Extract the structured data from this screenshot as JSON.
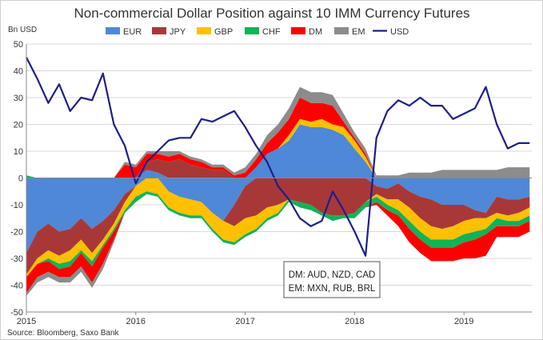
{
  "chart_data": {
    "type": "area",
    "title": "Non-commercial Dollar Position against 10 IMM Currency Futures",
    "ylabel": "Bn USD",
    "ylim": [
      -50,
      50
    ],
    "yticks": [
      50,
      40,
      30,
      20,
      10,
      0,
      -10,
      -20,
      -30,
      -40,
      -50
    ],
    "xlim": [
      2015.0,
      2019.62
    ],
    "xticks": [
      2015,
      2016,
      2017,
      2018,
      2019
    ],
    "xtick_labels": [
      "2015",
      "2016",
      "2017",
      "2018",
      "2019"
    ],
    "gridlines": true,
    "legend_position": "top",
    "source": "Source: Bloomberg, Saxo Bank",
    "note_lines": [
      "DM: AUD, NZD, CAD",
      "EM: MXN, RUB, BRL"
    ],
    "stacked_series": [
      {
        "name": "EUR",
        "color": "#4f88d6"
      },
      {
        "name": "JPY",
        "color": "#a83838"
      },
      {
        "name": "GBP",
        "color": "#ffc000"
      },
      {
        "name": "CHF",
        "color": "#12b256"
      },
      {
        "name": "DM",
        "color": "#ff0000"
      },
      {
        "name": "EM",
        "color": "#8c8c8c"
      }
    ],
    "x": [
      2015.0,
      2015.1,
      2015.2,
      2015.3,
      2015.4,
      2015.5,
      2015.6,
      2015.7,
      2015.8,
      2015.9,
      2016.0,
      2016.1,
      2016.2,
      2016.3,
      2016.4,
      2016.5,
      2016.6,
      2016.7,
      2016.8,
      2016.9,
      2017.0,
      2017.1,
      2017.2,
      2017.3,
      2017.4,
      2017.5,
      2017.6,
      2017.7,
      2017.8,
      2017.9,
      2018.0,
      2018.1,
      2018.2,
      2018.3,
      2018.4,
      2018.5,
      2018.6,
      2018.7,
      2018.8,
      2018.9,
      2019.0,
      2019.1,
      2019.2,
      2019.3,
      2019.4,
      2019.5,
      2019.6
    ],
    "series": [
      {
        "name": "EUR",
        "values": [
          -28,
          -20,
          -17,
          -20,
          -19,
          -15,
          -19,
          -16,
          -12,
          -6,
          -3,
          3,
          2,
          -5,
          -7,
          -8,
          -9,
          -13,
          -16,
          -10,
          -3,
          4,
          9,
          11,
          14,
          20,
          19,
          19,
          18,
          16,
          11,
          6,
          -3,
          -4,
          -2,
          -5,
          -7,
          -8,
          -10,
          -10,
          -10,
          -12,
          -13,
          -7,
          -8,
          -8,
          -7
        ]
      },
      {
        "name": "JPY",
        "values": [
          -8,
          -10,
          -10,
          -9,
          -8,
          -8,
          -9,
          -7,
          -5,
          -3,
          0,
          3,
          5,
          6,
          7,
          5,
          4,
          3,
          3,
          -8,
          -12,
          -14,
          -11,
          -10,
          -8,
          -9,
          -10,
          -13,
          -14,
          -14,
          -13,
          -9,
          -3,
          -4,
          -6,
          -6,
          -8,
          -10,
          -9,
          -8,
          -6,
          -3,
          -2,
          -6,
          -6,
          -5,
          -4
        ]
      },
      {
        "name": "GBP",
        "values": [
          -1,
          -2,
          -3,
          -3,
          -4,
          -4,
          -3,
          -2,
          -2,
          -3,
          -4,
          -5,
          -6,
          -6,
          -6,
          -6,
          -5,
          -6,
          -7,
          -6,
          -6,
          -5,
          -4,
          -3,
          2,
          2,
          2,
          3,
          2,
          3,
          3,
          2,
          -1,
          -2,
          -4,
          -5,
          -5,
          -5,
          -4,
          -5,
          -5,
          -5,
          -4,
          -2,
          -2,
          -3,
          -3
        ]
      },
      {
        "name": "CHF",
        "values": [
          1,
          0,
          -1,
          -2,
          -2,
          -1,
          -2,
          -1,
          -1,
          -1,
          -2,
          -1,
          -1,
          -1,
          -1,
          -1,
          -1,
          -1,
          -1,
          -1,
          -1,
          -1,
          -1,
          -1,
          -1,
          -2,
          -2,
          -1,
          -2,
          -1,
          -2,
          -2,
          -2,
          -2,
          -2,
          -3,
          -3,
          -3,
          -3,
          -3,
          -3,
          -3,
          -2,
          -3,
          -2,
          -2,
          -2
        ]
      },
      {
        "name": "DM",
        "values": [
          -6,
          -5,
          -4,
          -3,
          -4,
          -5,
          -6,
          -6,
          -3,
          5,
          4,
          3,
          2,
          2,
          2,
          2,
          2,
          1,
          1,
          1,
          2,
          3,
          4,
          6,
          6,
          8,
          7,
          6,
          7,
          2,
          1,
          1,
          -1,
          -2,
          -4,
          -5,
          -5,
          -5,
          -5,
          -5,
          -6,
          -7,
          -8,
          -4,
          -4,
          -4,
          -4
        ]
      },
      {
        "name": "EM",
        "values": [
          -1,
          -2,
          -2,
          -2,
          -2,
          -2,
          -2,
          -2,
          -1,
          1,
          1,
          1,
          1,
          2,
          1,
          1,
          1,
          1,
          1,
          1,
          2,
          2,
          3,
          3,
          4,
          4,
          4,
          4,
          4,
          3,
          2,
          2,
          1,
          1,
          1,
          2,
          2,
          2,
          3,
          3,
          3,
          3,
          3,
          3,
          4,
          4,
          4
        ]
      },
      {
        "name": "USD",
        "color": "#1c1f8a",
        "values": [
          45,
          37,
          28,
          35,
          25,
          30,
          29,
          39,
          20,
          12,
          -2,
          6,
          10,
          14,
          15,
          15,
          22,
          21,
          23,
          25,
          19,
          12,
          6,
          -3,
          -8,
          -15,
          -18,
          -16,
          -5,
          -12,
          -20,
          -29,
          15,
          25,
          29,
          27,
          30,
          27,
          27,
          22,
          24,
          26,
          34,
          20,
          11,
          13,
          13
        ]
      }
    ]
  }
}
